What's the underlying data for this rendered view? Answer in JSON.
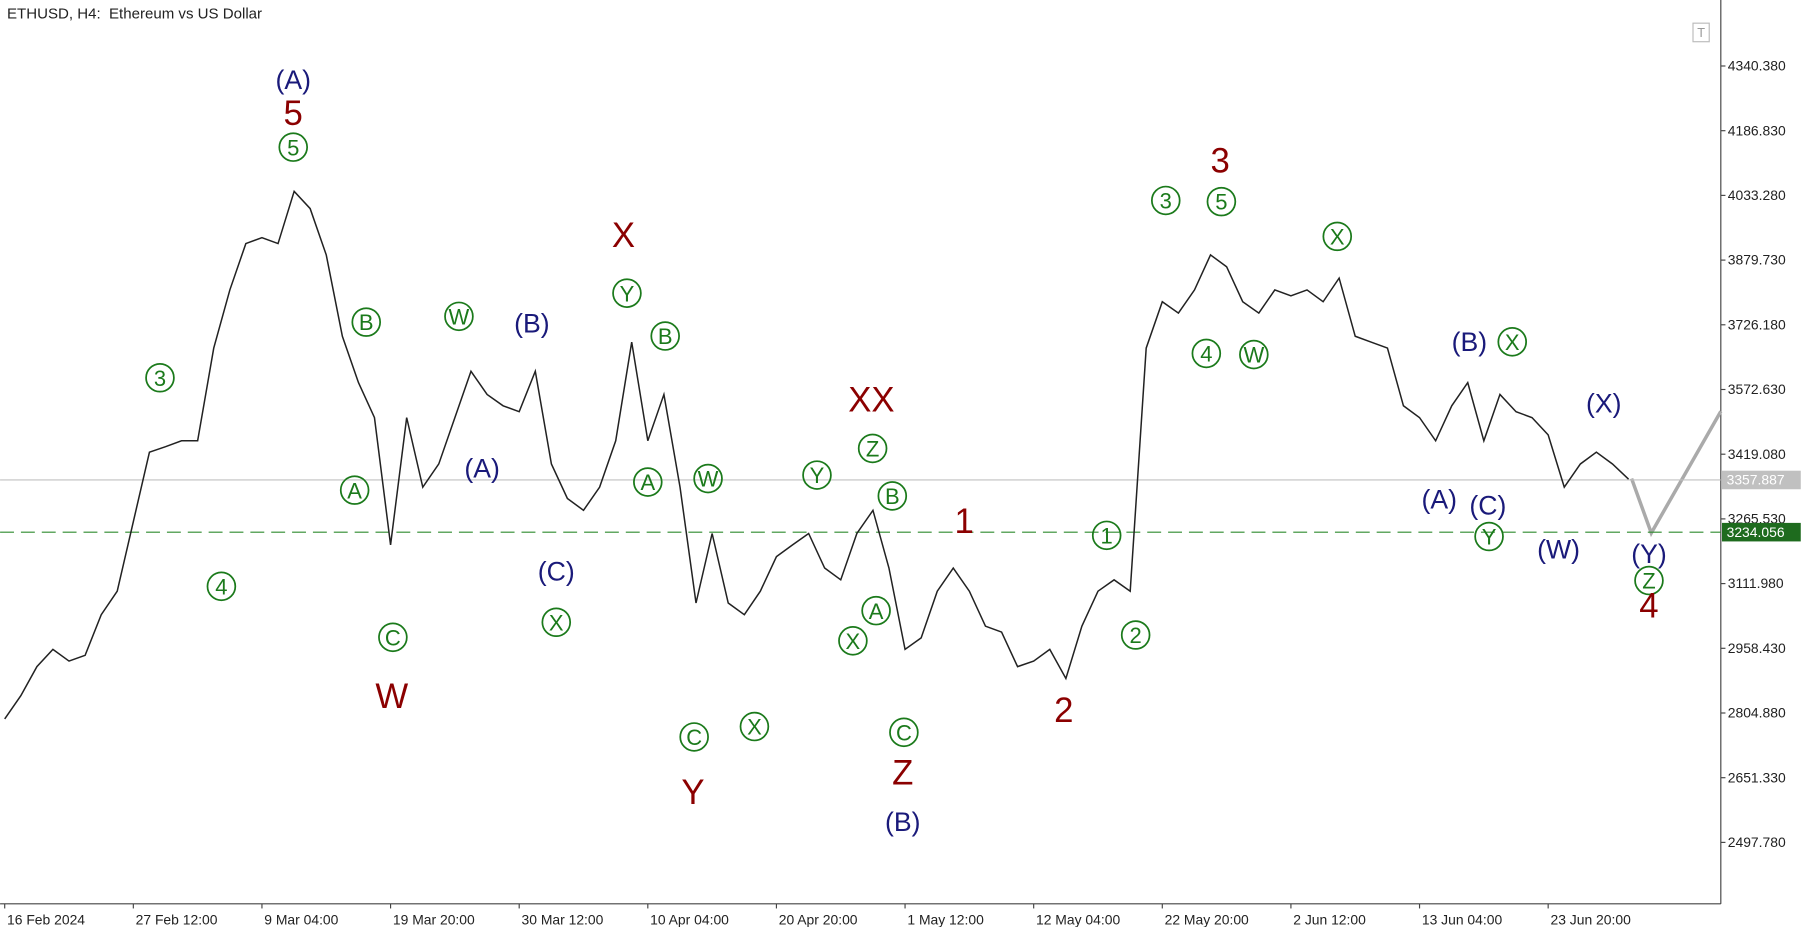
{
  "chart_data": {
    "type": "line",
    "title": "ETHUSD, H4:  Ethereum vs US Dollar",
    "color": "#222222",
    "categories": [
      "16 Feb 2024",
      null,
      null,
      null,
      null,
      null,
      null,
      null,
      "27 Feb 12:00",
      null,
      null,
      null,
      null,
      null,
      null,
      null,
      "9 Mar 04:00",
      null,
      null,
      null,
      null,
      null,
      null,
      null,
      "19 Mar 20:00",
      null,
      null,
      null,
      null,
      null,
      null,
      null,
      "30 Mar 12:00",
      null,
      null,
      null,
      null,
      null,
      null,
      null,
      "10 Apr 04:00",
      null,
      null,
      null,
      null,
      null,
      null,
      null,
      "20 Apr 20:00",
      null,
      null,
      null,
      null,
      null,
      null,
      null,
      "1 May 12:00",
      null,
      null,
      null,
      null,
      null,
      null,
      null,
      "12 May 04:00",
      null,
      null,
      null,
      null,
      null,
      null,
      null,
      "22 May 20:00",
      null,
      null,
      null,
      null,
      null,
      null,
      null,
      "2 Jun 12:00",
      null,
      null,
      null,
      null,
      null,
      null,
      null,
      "13 Jun 04:00",
      null,
      null,
      null,
      null,
      null,
      null,
      null,
      "23 Jun 20:00",
      null,
      null,
      null,
      null,
      null
    ],
    "values": [
      2791,
      2846,
      2915,
      2956,
      2928,
      2942,
      3038,
      3094,
      3259,
      3424,
      3437,
      3451,
      3451,
      3671,
      3809,
      3919,
      3933,
      3919,
      4043,
      4002,
      3892,
      3699,
      3589,
      3506,
      3204,
      3506,
      3341,
      3396,
      3506,
      3616,
      3561,
      3534,
      3520,
      3616,
      3396,
      3314,
      3286,
      3341,
      3451,
      3685,
      3451,
      3561,
      3341,
      3066,
      3231,
      3066,
      3038,
      3094,
      3176,
      3204,
      3231,
      3149,
      3121,
      3231,
      3286,
      3149,
      2956,
      2983,
      3094,
      3149,
      3094,
      3011,
      2997,
      2915,
      2928,
      2956,
      2887,
      3011,
      3094,
      3121,
      3094,
      3671,
      3781,
      3754,
      3809,
      3892,
      3864,
      3781,
      3754,
      3809,
      3795,
      3809,
      3781,
      3837,
      3699,
      3685,
      3671,
      3534,
      3506,
      3451,
      3534,
      3589,
      3451,
      3561,
      3520,
      3506,
      3465,
      3341,
      3396,
      3424,
      3396,
      3360
    ],
    "ylim": [
      2352,
      4497
    ],
    "yticks": [
      {
        "value": 4340.38,
        "label": "4340.380"
      },
      {
        "value": 4186.83,
        "label": "4186.830"
      },
      {
        "value": 4033.28,
        "label": "4033.280"
      },
      {
        "value": 3879.73,
        "label": "3879.730"
      },
      {
        "value": 3726.18,
        "label": "3726.180"
      },
      {
        "value": 3572.63,
        "label": "3572.630"
      },
      {
        "value": 3419.08,
        "label": "3419.080"
      },
      {
        "value": 3265.53,
        "label": "3265.530"
      },
      {
        "value": 3111.98,
        "label": "3111.980"
      },
      {
        "value": 2958.43,
        "label": "2958.430"
      },
      {
        "value": 2804.88,
        "label": "2804.880"
      },
      {
        "value": 2651.33,
        "label": "2651.330"
      },
      {
        "value": 2497.78,
        "label": "2497.780"
      }
    ],
    "price_lines": [
      3357.887,
      3234.056
    ],
    "annotations": [
      "(A)",
      "5",
      "5",
      "3",
      "4",
      "B",
      "A",
      "C",
      "W",
      "W",
      "(A)",
      "(B)",
      "(C)",
      "X",
      "X",
      "Y",
      "B",
      "A",
      "W",
      "C",
      "Y",
      "X",
      "Y",
      "XX",
      "Z",
      "B",
      "A",
      "X",
      "C",
      "Z",
      "(B)",
      "1",
      "2",
      "1",
      "2",
      "3",
      "3",
      "5",
      "4",
      "W",
      "X",
      "(B)",
      "X",
      "(A)",
      "(C)",
      "Y",
      "(W)",
      "(X)",
      "(Y)",
      "Z",
      "4"
    ]
  }
}
